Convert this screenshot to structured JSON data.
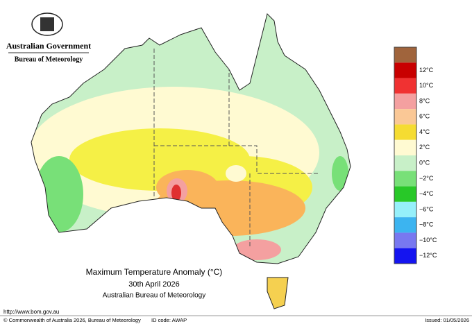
{
  "header": {
    "agency": "Australian Government",
    "bureau": "Bureau of Meteorology"
  },
  "title": {
    "line1": "Maximum Temperature Anomaly (°C)",
    "line2": "30th April 2026",
    "line3": "Australian Bureau of Meteorology"
  },
  "legend": {
    "labels": [
      "12°C",
      "10°C",
      "8°C",
      "6°C",
      "4°C",
      "2°C",
      "0°C",
      "−2°C",
      "−4°C",
      "−6°C",
      "−8°C",
      "−10°C",
      "−12°C"
    ]
  },
  "footer": {
    "url": "http://www.bom.gov.au",
    "copyright": "© Commonwealth of Australia 2026, Bureau of Meteorology",
    "id_code": "ID code: AWAP",
    "issued": "Issued: 01/05/2026"
  }
}
